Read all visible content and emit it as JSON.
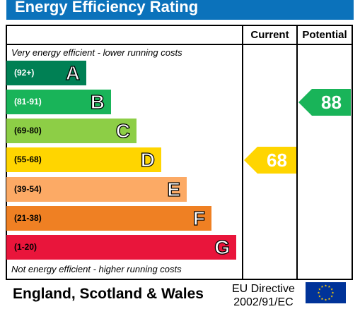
{
  "header": {
    "title": "Energy Efficiency Rating"
  },
  "columns": {
    "current": "Current",
    "potential": "Potential"
  },
  "notes": {
    "top": "Very energy efficient - lower running costs",
    "bottom": "Not energy efficient - higher running costs"
  },
  "chart_data": {
    "type": "bar",
    "categories": [
      "A",
      "B",
      "C",
      "D",
      "E",
      "F",
      "G"
    ],
    "ranges": [
      "(92+)",
      "(81-91)",
      "(69-80)",
      "(55-68)",
      "(39-54)",
      "(21-38)",
      "(1-20)"
    ],
    "colors": [
      "#008054",
      "#19b459",
      "#8dce46",
      "#ffd500",
      "#fcaa65",
      "#ef8023",
      "#e9153b"
    ],
    "current": {
      "value": 68,
      "band": "D",
      "color": "#ffd500"
    },
    "potential": {
      "value": 88,
      "band": "B",
      "color": "#19b459"
    }
  },
  "footer": {
    "region": "England, Scotland & Wales",
    "directive_line1": "EU Directive",
    "directive_line2": "2002/91/EC"
  },
  "icons": {
    "flag": "eu-flag-icon"
  }
}
